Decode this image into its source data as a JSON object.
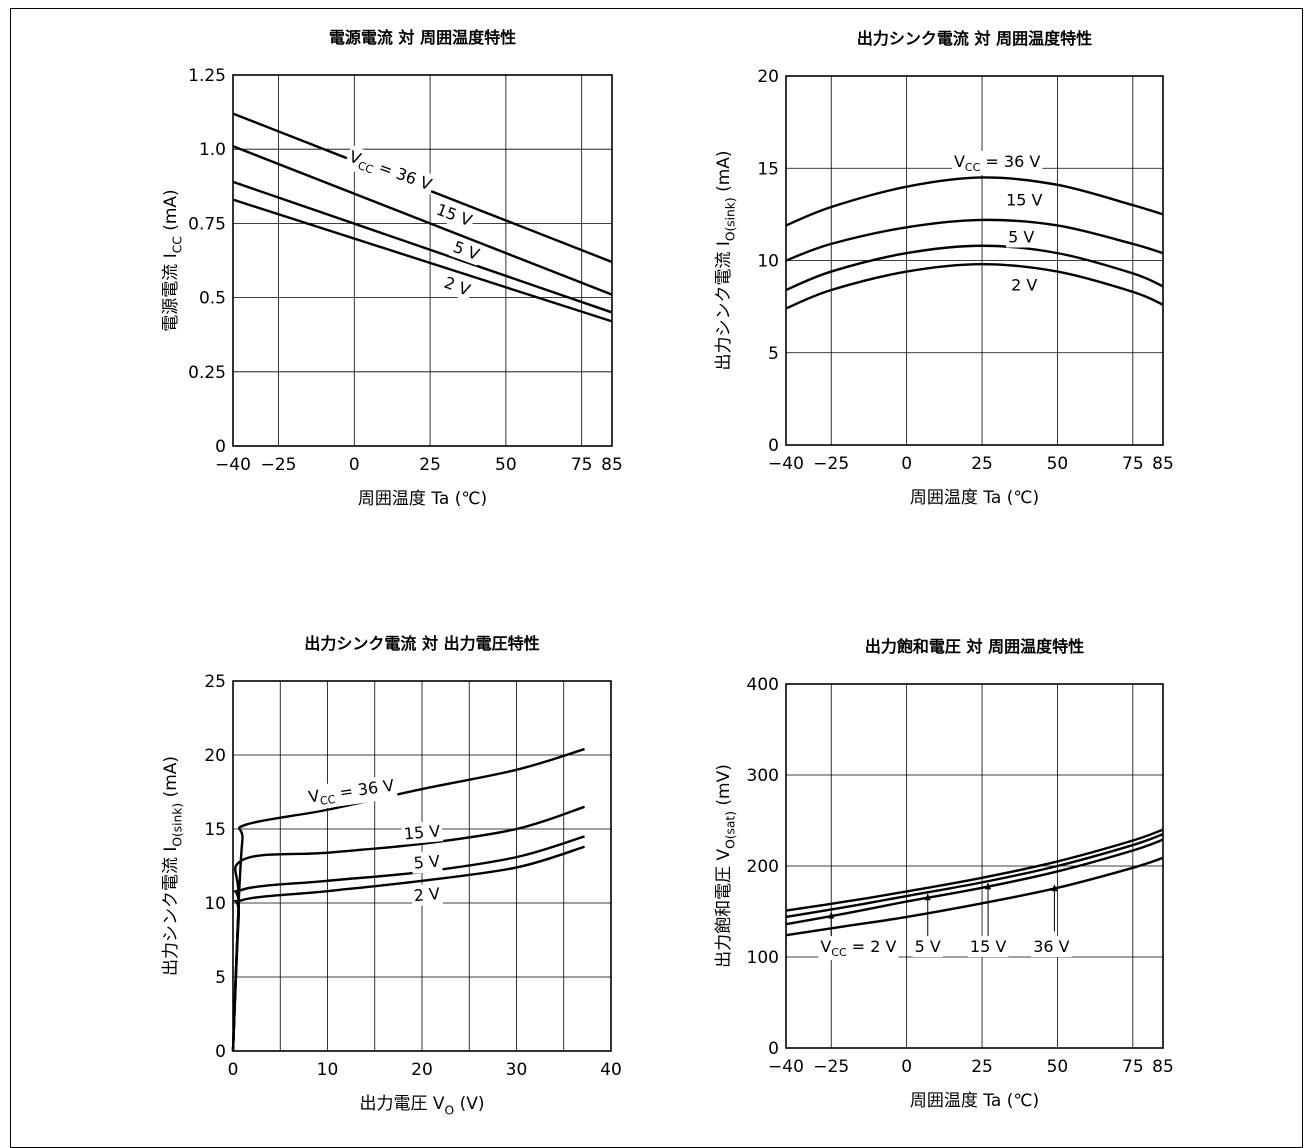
{
  "chart_data": [
    {
      "type": "line",
      "title": "電源電流 対 周囲温度特性",
      "xlabel": "周囲温度 Ta (℃)",
      "ylabel": {
        "main": "電源電流 I",
        "sub": "CC",
        "unit": "(mA)"
      },
      "xlim": [
        -40,
        85
      ],
      "ylim": [
        0,
        1.25
      ],
      "x_ticks": [
        -40,
        -25,
        0,
        25,
        50,
        75,
        85
      ],
      "x_tick_labels": [
        "−40",
        "−25",
        "0",
        "25",
        "50",
        "75",
        "85"
      ],
      "y_ticks": [
        0,
        0.25,
        0.5,
        0.75,
        1.0,
        1.25
      ],
      "y_tick_labels": [
        "0",
        "0.25",
        "0.5",
        "0.75",
        "1.0",
        "1.25"
      ],
      "x_grid": [
        -40,
        -25,
        0,
        25,
        50,
        75,
        85
      ],
      "y_grid": [
        0,
        0.25,
        0.5,
        0.75,
        1.0,
        1.25
      ],
      "series": [
        {
          "name": "VCC = 36 V",
          "x": [
            -40,
            85
          ],
          "y": [
            1.12,
            0.62
          ]
        },
        {
          "name": "15 V",
          "x": [
            -40,
            85
          ],
          "y": [
            1.01,
            0.51
          ]
        },
        {
          "name": "5 V",
          "x": [
            -40,
            85
          ],
          "y": [
            0.89,
            0.45
          ]
        },
        {
          "name": "2 V",
          "x": [
            -40,
            85
          ],
          "y": [
            0.83,
            0.42
          ]
        }
      ],
      "labels": [
        {
          "text": "V",
          "sub": "CC",
          "rest": " = 36 V",
          "x": 12,
          "y": 0.93,
          "rotate": 20
        },
        {
          "text": "15 V",
          "x": 33,
          "y": 0.78,
          "rotate": 20
        },
        {
          "text": "5 V",
          "x": 37,
          "y": 0.66,
          "rotate": 20
        },
        {
          "text": "2 V",
          "x": 34,
          "y": 0.54,
          "rotate": 20
        }
      ]
    },
    {
      "type": "line",
      "title": "出力シンク電流 対 周囲温度特性",
      "xlabel": "周囲温度 Ta (℃)",
      "ylabel": {
        "main": "出力シンク電流 I",
        "sub": "O(sink)",
        "unit": "(mA)"
      },
      "xlim": [
        -40,
        85
      ],
      "ylim": [
        0,
        20
      ],
      "x_ticks": [
        -40,
        -25,
        0,
        25,
        50,
        75,
        85
      ],
      "x_tick_labels": [
        "−40",
        "−25",
        "0",
        "25",
        "50",
        "75",
        "85"
      ],
      "y_ticks": [
        0,
        5,
        10,
        15,
        20
      ],
      "y_tick_labels": [
        "0",
        "5",
        "10",
        "15",
        "20"
      ],
      "x_grid": [
        -40,
        -25,
        0,
        25,
        50,
        75,
        85
      ],
      "y_grid": [
        0,
        5,
        10,
        15,
        20
      ],
      "series": [
        {
          "name": "VCC = 36 V",
          "x": [
            -40,
            -25,
            0,
            25,
            50,
            75,
            85
          ],
          "y": [
            11.9,
            12.9,
            14.0,
            14.5,
            14.1,
            13.0,
            12.5
          ]
        },
        {
          "name": "15 V",
          "x": [
            -40,
            -25,
            0,
            25,
            50,
            75,
            85
          ],
          "y": [
            10.0,
            10.9,
            11.8,
            12.2,
            11.9,
            10.9,
            10.4
          ]
        },
        {
          "name": "5 V",
          "x": [
            -40,
            -25,
            0,
            25,
            50,
            75,
            85
          ],
          "y": [
            8.4,
            9.4,
            10.4,
            10.8,
            10.4,
            9.3,
            8.6
          ]
        },
        {
          "name": "2 V",
          "x": [
            -40,
            -25,
            0,
            25,
            50,
            75,
            85
          ],
          "y": [
            7.4,
            8.4,
            9.4,
            9.8,
            9.4,
            8.3,
            7.6
          ]
        }
      ],
      "labels": [
        {
          "text": "V",
          "sub": "CC",
          "rest": " = 36 V",
          "x": 30,
          "y": 15.4,
          "rotate": 0
        },
        {
          "text": "15 V",
          "x": 39,
          "y": 13.3,
          "rotate": 0
        },
        {
          "text": "5 V",
          "x": 38,
          "y": 11.3,
          "rotate": 0
        },
        {
          "text": "2 V",
          "x": 39,
          "y": 8.7,
          "rotate": 0
        }
      ]
    },
    {
      "type": "line",
      "title": "出力シンク電流 対 出力電圧特性",
      "xlabel": {
        "main": "出力電圧 V",
        "sub": "O",
        "unit": "(V)"
      },
      "ylabel": {
        "main": "出力シンク電流 I",
        "sub": "O(sink)",
        "unit": "(mA)"
      },
      "xlim": [
        0,
        40
      ],
      "ylim": [
        0,
        25
      ],
      "x_ticks": [
        0,
        10,
        20,
        30,
        40
      ],
      "x_tick_labels": [
        "0",
        "10",
        "20",
        "30",
        "40"
      ],
      "y_ticks": [
        0,
        5,
        10,
        15,
        20,
        25
      ],
      "y_tick_labels": [
        "0",
        "5",
        "10",
        "15",
        "20",
        "25"
      ],
      "x_grid": [
        0,
        5,
        10,
        15,
        20,
        25,
        30,
        35,
        40
      ],
      "y_grid": [
        0,
        5,
        10,
        15,
        20,
        25
      ],
      "series": [
        {
          "name": "VCC = 36 V",
          "x": [
            0,
            0.6,
            1.0,
            1.4,
            10,
            20,
            30,
            37.2
          ],
          "y": [
            0,
            10.0,
            14.3,
            15.3,
            16.3,
            17.7,
            19.0,
            20.4
          ]
        },
        {
          "name": "15 V",
          "x": [
            0,
            0.6,
            1.0,
            10,
            20,
            30,
            37.2
          ],
          "y": [
            0,
            10.0,
            12.9,
            13.4,
            14.0,
            15.0,
            16.5
          ]
        },
        {
          "name": "5 V",
          "x": [
            0,
            0.6,
            1.0,
            10,
            20,
            30,
            37.2
          ],
          "y": [
            0,
            9.5,
            10.9,
            11.5,
            12.1,
            13.1,
            14.5
          ]
        },
        {
          "name": "2 V",
          "x": [
            0,
            0.6,
            1.0,
            10,
            20,
            30,
            37.2
          ],
          "y": [
            0,
            9.0,
            10.2,
            10.8,
            11.5,
            12.4,
            13.8
          ]
        }
      ],
      "labels": [
        {
          "text": "V",
          "sub": "CC",
          "rest": " = 36 V",
          "x": 12.5,
          "y": 17.6,
          "rotate": -8
        },
        {
          "text": "15 V",
          "x": 20,
          "y": 14.8,
          "rotate": -5
        },
        {
          "text": "5 V",
          "x": 20.5,
          "y": 12.8,
          "rotate": -5
        },
        {
          "text": "2 V",
          "x": 20.5,
          "y": 10.6,
          "rotate": -5
        }
      ]
    },
    {
      "type": "line",
      "title": "出力飽和電圧 対 周囲温度特性",
      "xlabel": "周囲温度 Ta (℃)",
      "ylabel": {
        "main": "出力飽和電圧 V",
        "sub": "O(sat)",
        "unit": "(mV)"
      },
      "xlim": [
        -40,
        85
      ],
      "ylim": [
        0,
        400
      ],
      "x_ticks": [
        -40,
        -25,
        0,
        25,
        50,
        75,
        85
      ],
      "x_tick_labels": [
        "−40",
        "−25",
        "0",
        "25",
        "50",
        "75",
        "85"
      ],
      "y_ticks": [
        0,
        100,
        200,
        300,
        400
      ],
      "y_tick_labels": [
        "0",
        "100",
        "200",
        "300",
        "400"
      ],
      "x_grid": [
        -40,
        -25,
        0,
        25,
        50,
        75,
        85
      ],
      "y_grid": [
        0,
        100,
        200,
        300,
        400
      ],
      "series": [
        {
          "name": "VCC = 2 V",
          "x": [
            -40,
            -20,
            0,
            25,
            50,
            75,
            85
          ],
          "y": [
            151,
            161,
            172,
            187,
            205,
            228,
            240
          ]
        },
        {
          "name": "5 V",
          "x": [
            -40,
            -20,
            0,
            25,
            50,
            75,
            85
          ],
          "y": [
            144,
            155,
            167,
            182,
            200,
            223,
            235
          ]
        },
        {
          "name": "15 V",
          "x": [
            -40,
            -20,
            0,
            25,
            50,
            75,
            85
          ],
          "y": [
            136,
            148,
            161,
            176,
            194,
            217,
            229
          ]
        },
        {
          "name": "36 V",
          "x": [
            -40,
            -20,
            0,
            25,
            50,
            75,
            85
          ],
          "y": [
            124,
            134,
            144,
            159,
            176,
            198,
            209
          ]
        }
      ],
      "labels": [
        {
          "text": "V",
          "sub": "CC",
          "rest": " = 2 V",
          "x": -16,
          "y": 112,
          "rotate": 0
        },
        {
          "text": "5 V",
          "x": 7,
          "y": 112,
          "rotate": 0
        },
        {
          "text": "15 V",
          "x": 27,
          "y": 112,
          "rotate": 0
        },
        {
          "text": "36 V",
          "x": 48,
          "y": 112,
          "rotate": 0
        }
      ],
      "arrows": [
        {
          "x": -25,
          "from": 122,
          "to": 150
        },
        {
          "x": 7,
          "from": 122,
          "to": 170
        },
        {
          "x": 27,
          "from": 122,
          "to": 182
        },
        {
          "x": 49,
          "from": 128,
          "to": 180
        }
      ]
    }
  ]
}
